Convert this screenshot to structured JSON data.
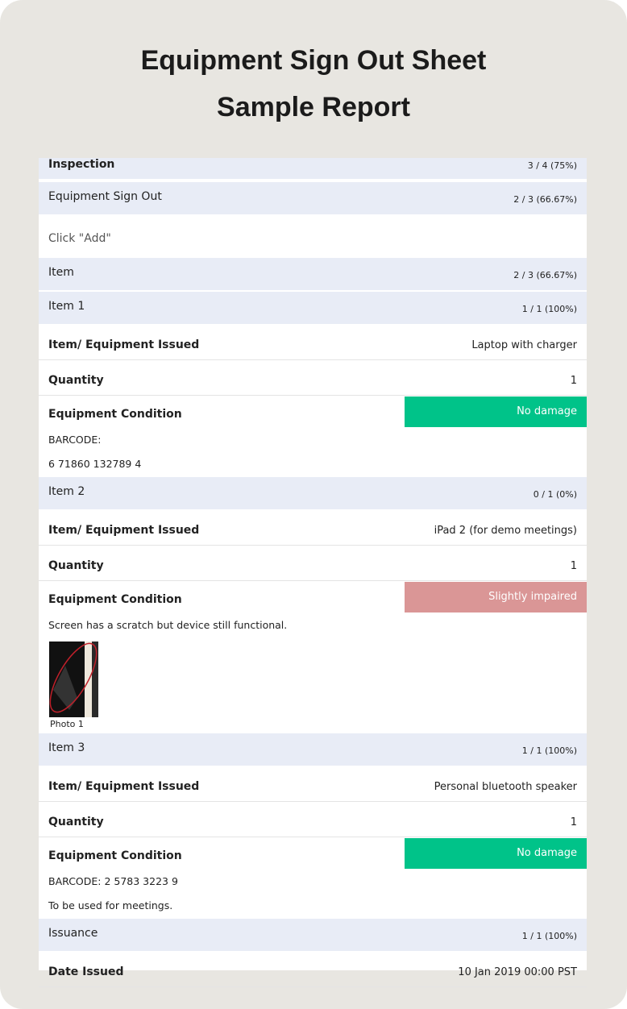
{
  "header": {
    "title": "Equipment Sign Out Sheet",
    "subtitle": "Sample Report"
  },
  "rows": [
    {
      "type": "section",
      "label": "Inspection",
      "score": "3 / 4 (75%)",
      "bold": true
    },
    {
      "type": "section",
      "label": "Equipment Sign Out",
      "score": "2 / 3 (66.67%)"
    },
    {
      "type": "hint",
      "label": "Click \"Add\""
    },
    {
      "type": "section",
      "label": "Item",
      "score": "2 / 3 (66.67%)"
    },
    {
      "type": "section",
      "label": "Item 1",
      "score": "1 / 1 (100%)"
    },
    {
      "type": "field",
      "label": "Item/ Equipment Issued",
      "value": "Laptop with charger"
    },
    {
      "type": "field",
      "label": "Quantity",
      "value": "1"
    },
    {
      "type": "condition",
      "label": "Equipment Condition",
      "value": "No damage",
      "color": "#00c389"
    },
    {
      "type": "note",
      "label": "BARCODE:"
    },
    {
      "type": "note",
      "label": "6 71860 132789 4"
    },
    {
      "type": "section",
      "label": "Item 2",
      "score": "0 / 1 (0%)"
    },
    {
      "type": "field",
      "label": "Item/ Equipment Issued",
      "value": "iPad 2 (for demo meetings)"
    },
    {
      "type": "field",
      "label": "Quantity",
      "value": "1"
    },
    {
      "type": "condition",
      "label": "Equipment Condition",
      "value": "Slightly impaired",
      "color": "#da9696"
    },
    {
      "type": "note",
      "label": "Screen has a scratch but device still functional."
    },
    {
      "type": "photo",
      "label": "Photo 1"
    },
    {
      "type": "section",
      "label": "Item 3",
      "score": "1 / 1 (100%)"
    },
    {
      "type": "field",
      "label": "Item/ Equipment Issued",
      "value": "Personal bluetooth speaker"
    },
    {
      "type": "field",
      "label": "Quantity",
      "value": "1"
    },
    {
      "type": "condition",
      "label": "Equipment Condition",
      "value": "No damage",
      "color": "#00c389"
    },
    {
      "type": "note",
      "label": "BARCODE: 2 5783 3223 9"
    },
    {
      "type": "note",
      "label": "To be used for meetings."
    },
    {
      "type": "section",
      "label": "Issuance",
      "score": "1 / 1 (100%)"
    },
    {
      "type": "field",
      "label": "Date Issued",
      "value": "10 Jan 2019 00:00 PST"
    }
  ]
}
